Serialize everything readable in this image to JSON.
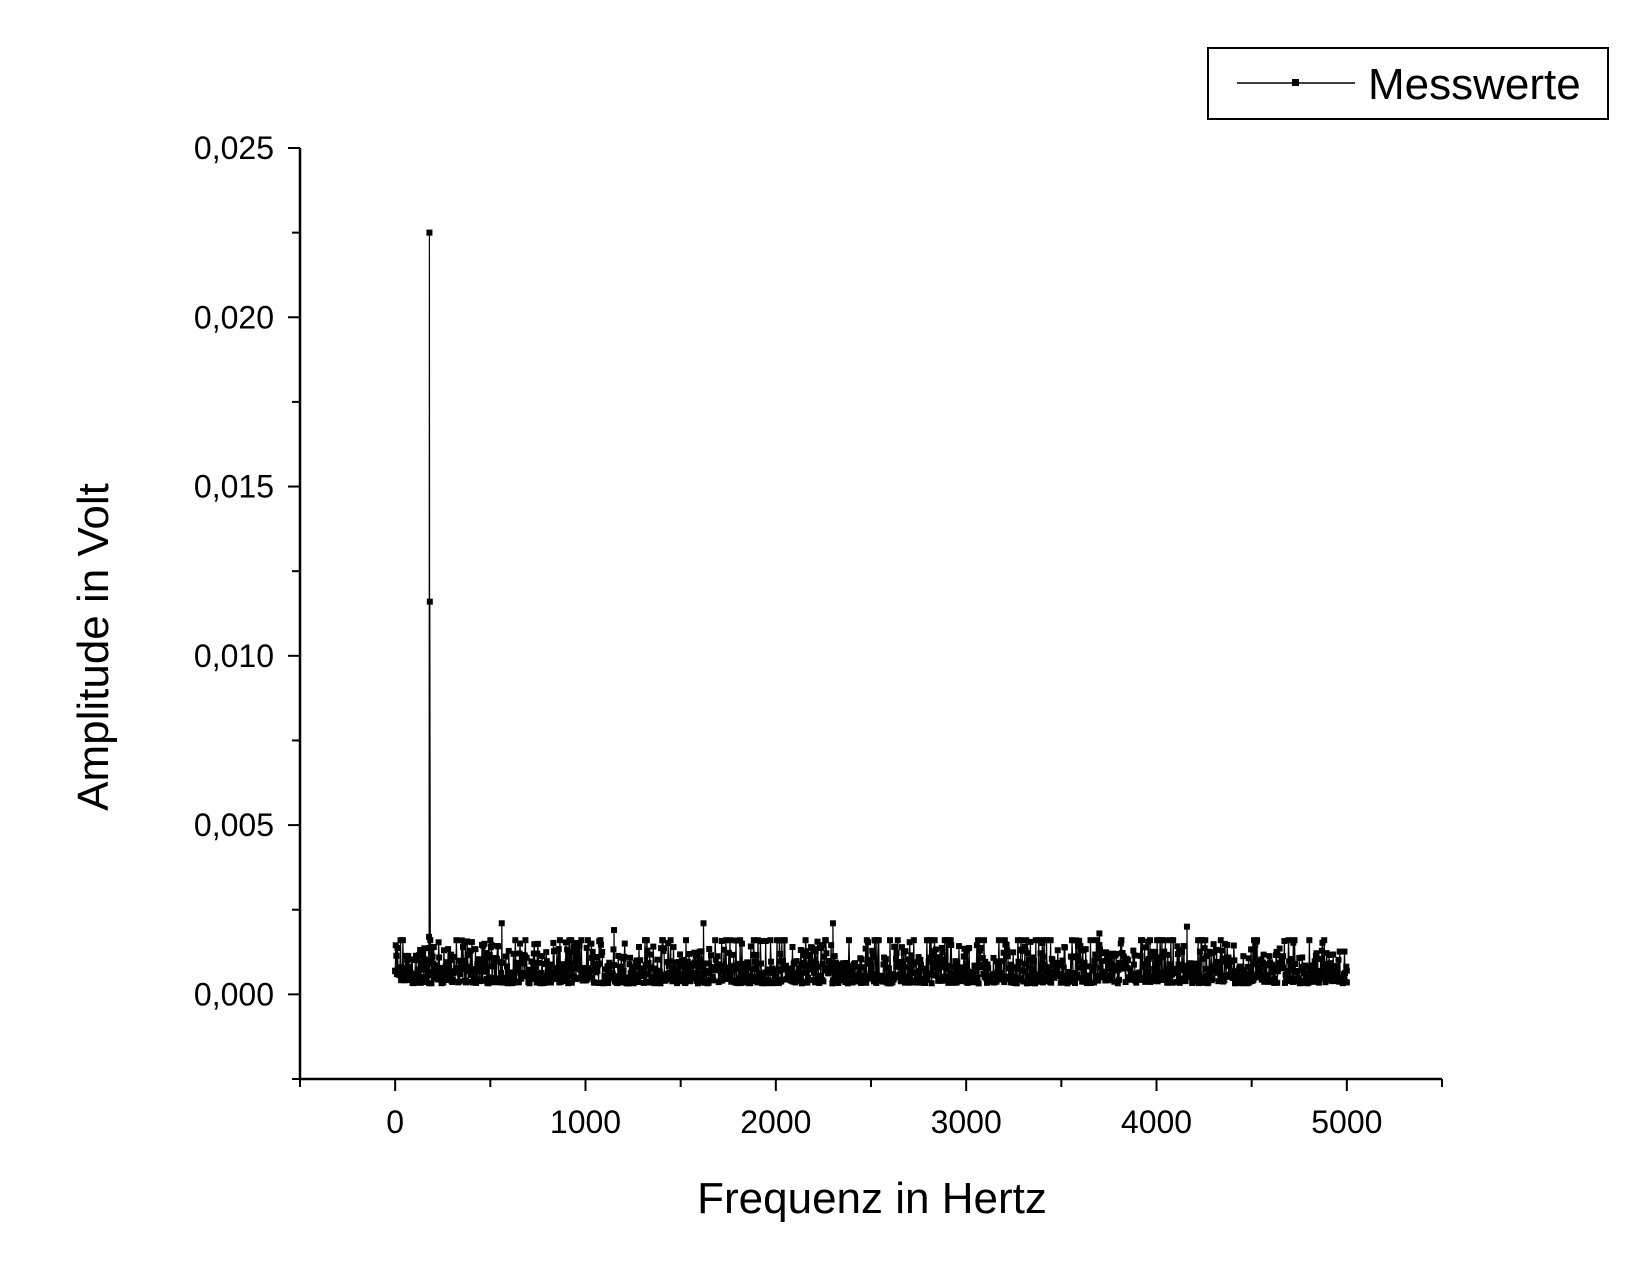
{
  "chart_data": {
    "type": "line",
    "xlabel": "Frequenz in Hertz",
    "ylabel": "Amplitude in Volt",
    "xlim": [
      -500,
      5500
    ],
    "ylim": [
      -0.0025,
      0.025
    ],
    "x_ticks": [
      0,
      1000,
      2000,
      3000,
      4000,
      5000
    ],
    "x_tick_labels": [
      "0",
      "1000",
      "2000",
      "3000",
      "4000",
      "5000"
    ],
    "y_ticks": [
      0.0,
      0.005,
      0.01,
      0.015,
      0.02,
      0.025
    ],
    "y_tick_labels": [
      "0,000",
      "0,005",
      "0,010",
      "0,015",
      "0,020",
      "0,025"
    ],
    "grid": false,
    "legend_position": "top-right",
    "series": [
      {
        "name": "Messwerte",
        "color": "#000000",
        "marker": "square",
        "noise_floor": {
          "x_range": [
            0,
            5000
          ],
          "y_range": [
            0.0001,
            0.0016
          ],
          "typical": 0.0006,
          "occasional_peaks_up_to": 0.0021
        },
        "x": [
          0,
          100,
          150,
          170,
          178,
          180,
          182,
          190,
          210,
          250,
          400,
          560,
          700,
          1000,
          1150,
          1200,
          1500,
          1620,
          2000,
          2300,
          2500,
          3000,
          3500,
          3700,
          4000,
          4160,
          4500,
          5000
        ],
        "y": [
          0.0007,
          0.0006,
          0.0008,
          0.0009,
          0.0017,
          0.0225,
          0.0116,
          0.001,
          0.0007,
          0.0006,
          0.0007,
          0.0021,
          0.0007,
          0.0006,
          0.0019,
          0.0007,
          0.0006,
          0.0021,
          0.0006,
          0.0021,
          0.0007,
          0.0006,
          0.0006,
          0.0018,
          0.0007,
          0.002,
          0.0006,
          0.0007
        ]
      }
    ]
  }
}
